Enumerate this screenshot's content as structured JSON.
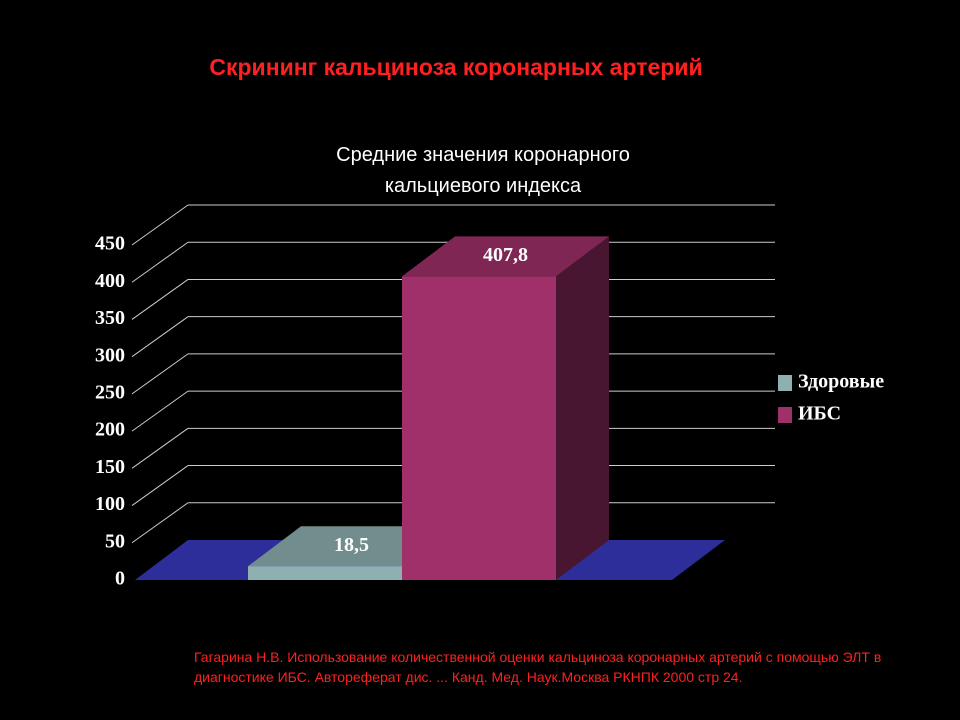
{
  "slide_title": "Скрининг кальциноза коронарных артерий",
  "source": "Гагарина Н.В. Использование количественной оценки кальциноза коронарных артерий с помощью ЭЛТ в диагностике ИБС. Автореферат дис. ... Канд. Мед. Наук.Москва РКНПК 2000 стр 24.",
  "chart_data": {
    "type": "bar3d",
    "title": "Средние значения коронарного кальциевого индекса",
    "categories": [
      null
    ],
    "series": [
      {
        "name": "Здоровые",
        "color": "#8fb0b0",
        "values": [
          18.5
        ],
        "value_labels": [
          "18,5"
        ]
      },
      {
        "name": "ИБС",
        "color": "#a0306a",
        "values": [
          407.8
        ],
        "value_labels": [
          "407,8"
        ]
      }
    ],
    "ylim": [
      0,
      450
    ],
    "yticks": [
      0,
      50,
      100,
      150,
      200,
      250,
      300,
      350,
      400,
      450
    ],
    "grid": true,
    "floor_color": "#2e2e9a",
    "legend": "right"
  }
}
